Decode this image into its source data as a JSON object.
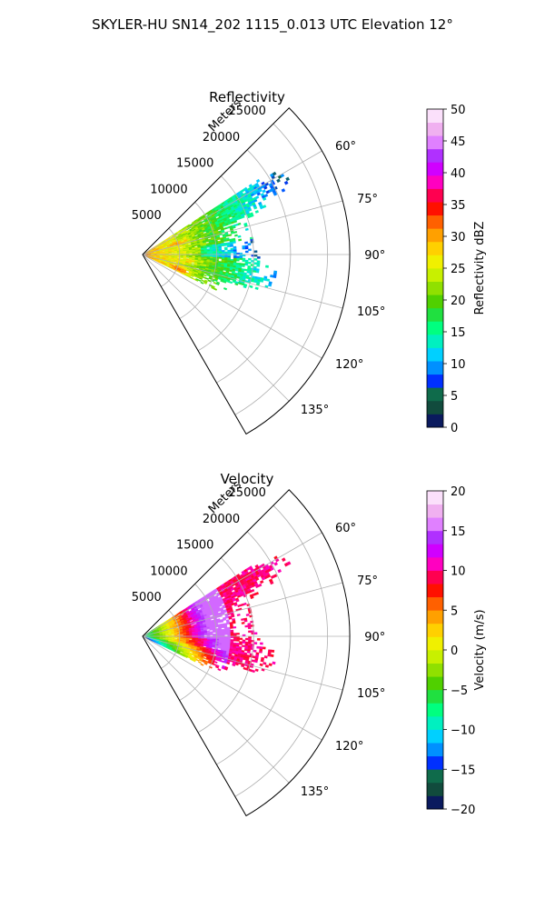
{
  "figure": {
    "title": "SKYLER-HU  SN14_202  1115_0.013 UTC Elevation 12°"
  },
  "chart_data": [
    {
      "type": "heatmap",
      "subtype": "polar-sector-ppi",
      "title": "Reflectivity",
      "radial_label": "Meters",
      "radial_ticks": [
        5000,
        10000,
        15000,
        20000,
        25000
      ],
      "radial_tick_labels": [
        "5000",
        "10000",
        "15000",
        "20000",
        "25000"
      ],
      "rlim": [
        0,
        28000
      ],
      "azimuth_range_deg": [
        45,
        150
      ],
      "azimuth_ticks": [
        60,
        75,
        90,
        105,
        120,
        135
      ],
      "azimuth_tick_labels": [
        "60°",
        "75°",
        "90°",
        "105°",
        "120°",
        "135°"
      ],
      "grid": true,
      "data_extent": {
        "azimuth_deg": [
          57,
          116
        ],
        "range_m": [
          0,
          20000
        ]
      },
      "colorbar": {
        "label": "Reflectivity dBZ",
        "range": [
          0,
          50
        ],
        "ticks": [
          0,
          5,
          10,
          15,
          20,
          25,
          30,
          35,
          40,
          45,
          50
        ],
        "tick_labels": [
          "0",
          "5",
          "10",
          "15",
          "20",
          "25",
          "30",
          "35",
          "40",
          "45",
          "50"
        ],
        "colors": [
          "#0a1a5e",
          "#114b3d",
          "#0f6b4b",
          "#0030ff",
          "#0090ff",
          "#00d0ff",
          "#00f0c0",
          "#00ff80",
          "#20e040",
          "#50d000",
          "#90e000",
          "#c8f000",
          "#f0f000",
          "#ffd000",
          "#ffa000",
          "#ff6000",
          "#ff1000",
          "#ff0050",
          "#ff00c0",
          "#d000ff",
          "#b030ff",
          "#e080ff",
          "#f0b0f0",
          "#fbe0fb"
        ]
      }
    },
    {
      "type": "heatmap",
      "subtype": "polar-sector-ppi",
      "title": "Velocity",
      "radial_label": "Meters",
      "radial_ticks": [
        5000,
        10000,
        15000,
        20000,
        25000
      ],
      "radial_tick_labels": [
        "5000",
        "10000",
        "15000",
        "20000",
        "25000"
      ],
      "rlim": [
        0,
        28000
      ],
      "azimuth_range_deg": [
        45,
        150
      ],
      "azimuth_ticks": [
        60,
        75,
        90,
        105,
        120,
        135
      ],
      "azimuth_tick_labels": [
        "60°",
        "75°",
        "90°",
        "105°",
        "120°",
        "135°"
      ],
      "grid": true,
      "data_extent": {
        "azimuth_deg": [
          57,
          116
        ],
        "range_m": [
          0,
          20000
        ]
      },
      "colorbar": {
        "label": "Velocity (m/s)",
        "range": [
          -20,
          20
        ],
        "ticks": [
          -20,
          -15,
          -10,
          -5,
          0,
          5,
          10,
          15,
          20
        ],
        "tick_labels": [
          "−20",
          "−15",
          "−10",
          "−5",
          "0",
          "5",
          "10",
          "15",
          "20"
        ],
        "colors": [
          "#0a1a5e",
          "#114b3d",
          "#0f6b4b",
          "#0030ff",
          "#0090ff",
          "#00d0ff",
          "#00f0c0",
          "#00ff80",
          "#20e040",
          "#50d000",
          "#90e000",
          "#c8f000",
          "#f0f000",
          "#ffd000",
          "#ffa000",
          "#ff6000",
          "#ff1000",
          "#ff0050",
          "#ff00c0",
          "#d000ff",
          "#b030ff",
          "#e080ff",
          "#f0b0f0",
          "#fbe0fb"
        ]
      }
    }
  ]
}
